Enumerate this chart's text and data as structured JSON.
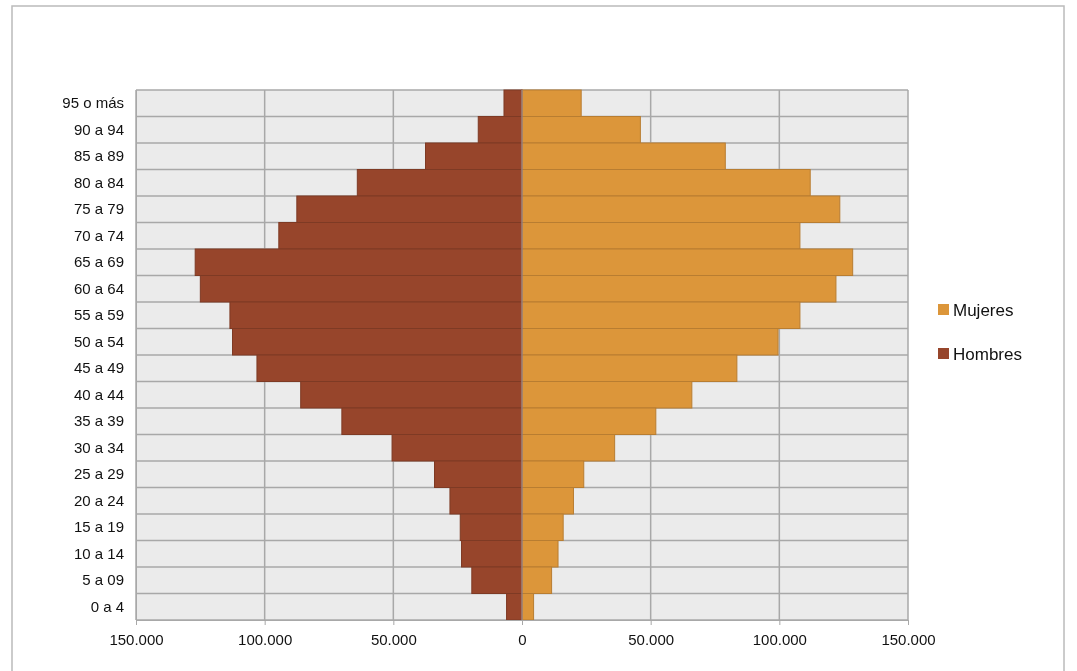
{
  "chart_data": {
    "type": "bar",
    "orientation": "horizontal",
    "stacked": true,
    "categories": [
      "95 o más",
      "90 a 94",
      "85 a 89",
      "80 a 84",
      "75 a 79",
      "70 a 74",
      "65 a 69",
      "60 a 64",
      "55 a 59",
      "50 a 54",
      "45 a 49",
      "40 a 44",
      "35 a 39",
      "30 a 34",
      "25 a 29",
      "20 a 24",
      "15 a 19",
      "10 a 14",
      "5 a 09",
      "0 a 4"
    ],
    "series": [
      {
        "name": "Mujeres",
        "color": "#dc963a",
        "values": [
          23000,
          46000,
          79000,
          112000,
          123500,
          108000,
          128500,
          122000,
          108000,
          99500,
          83500,
          66000,
          52000,
          36000,
          24000,
          20000,
          16000,
          14000,
          11500,
          4500
        ]
      },
      {
        "name": "Hombres",
        "color": "#97452b",
        "values": [
          -7000,
          -17000,
          -37500,
          -64000,
          -87500,
          -94500,
          -127000,
          -125000,
          -113500,
          -112500,
          -103000,
          -86000,
          -70000,
          -50500,
          -34000,
          -28000,
          -24000,
          -23500,
          -19500,
          -6000
        ]
      }
    ],
    "xlim": [
      -150000,
      150000
    ],
    "xticks": [
      {
        "value": -150000,
        "label": "150.000"
      },
      {
        "value": -100000,
        "label": "100.000"
      },
      {
        "value": -50000,
        "label": "50.000"
      },
      0,
      {
        "value": 50000,
        "label": "50.000"
      },
      {
        "value": 100000,
        "label": "100.000"
      },
      {
        "value": 150000,
        "label": "150.000"
      }
    ],
    "grid": true,
    "legend": "right"
  }
}
